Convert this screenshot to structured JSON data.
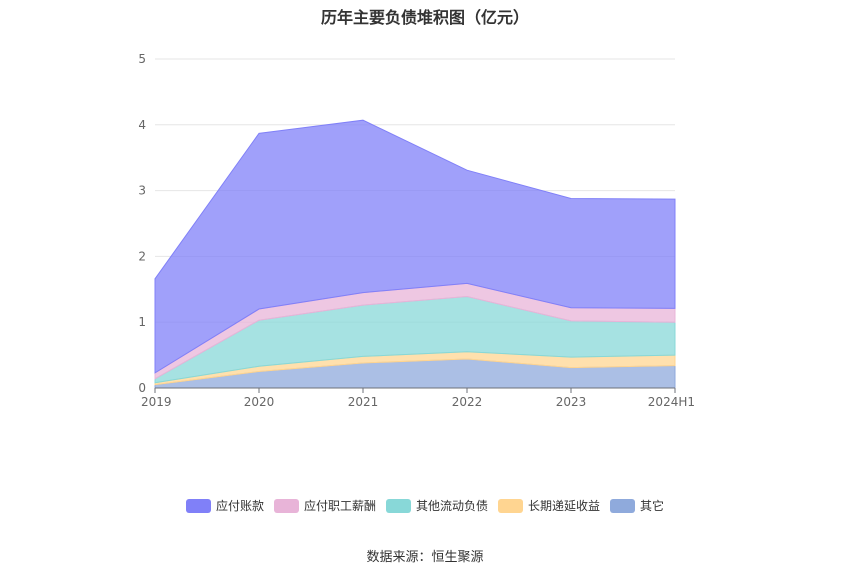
{
  "chart_data": {
    "type": "area",
    "stacked": true,
    "title": "历年主要负债堆积图（亿元）",
    "categories": [
      "2019",
      "2020",
      "2021",
      "2022",
      "2023",
      "2024H1"
    ],
    "ylim": [
      0,
      5
    ],
    "yticks": [
      "0",
      "1",
      "2",
      "3",
      "4",
      "5"
    ],
    "grid": true,
    "legend_position": "bottom",
    "series": [
      {
        "name": "其它",
        "color": "#8faadc",
        "values": [
          0.05,
          0.25,
          0.38,
          0.44,
          0.31,
          0.34
        ]
      },
      {
        "name": "长期递延收益",
        "color": "#ffd591",
        "values": [
          0.03,
          0.08,
          0.1,
          0.11,
          0.16,
          0.16
        ]
      },
      {
        "name": "其他流动负债",
        "color": "#88d8d8",
        "values": [
          0.06,
          0.7,
          0.78,
          0.84,
          0.55,
          0.5
        ]
      },
      {
        "name": "应付职工薪酬",
        "color": "#e8b4d8",
        "values": [
          0.09,
          0.17,
          0.19,
          0.2,
          0.2,
          0.21
        ]
      },
      {
        "name": "应付账款",
        "color": "#8080f8",
        "values": [
          1.43,
          2.67,
          2.62,
          1.72,
          1.66,
          1.66
        ]
      }
    ],
    "legend_order": [
      "应付账款",
      "应付职工薪酬",
      "其他流动负债",
      "长期递延收益",
      "其它"
    ]
  },
  "source_label": "数据来源：恒生聚源"
}
